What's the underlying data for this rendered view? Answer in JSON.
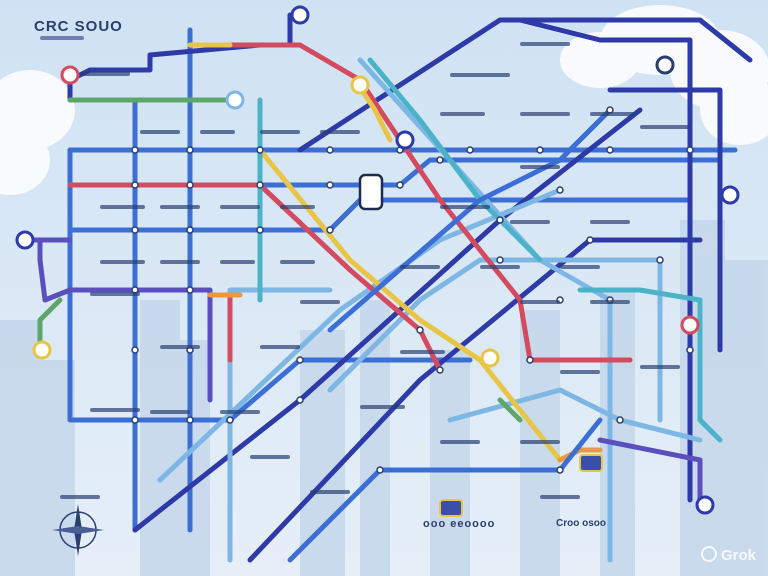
{
  "map": {
    "title": "CRC SOUO",
    "bottom_title": "ooo eeoooo",
    "bottom_title_2": "Croo osoo",
    "watermark": "Grok",
    "colors": {
      "background_sky": "#dbe8f4",
      "line_blue": "#3b6fd6",
      "line_navy": "#2d3aa8",
      "line_light_blue": "#7eb6e4",
      "line_red": "#d44a5e",
      "line_yellow": "#e8c547",
      "line_purple": "#5b4fbf",
      "line_orange": "#e89a3c",
      "line_green": "#5ca66a",
      "line_teal": "#4bb3c9"
    },
    "icons": [
      "compass-icon",
      "station-interchange-icon",
      "train-icon",
      "terminal-station-icon"
    ]
  }
}
